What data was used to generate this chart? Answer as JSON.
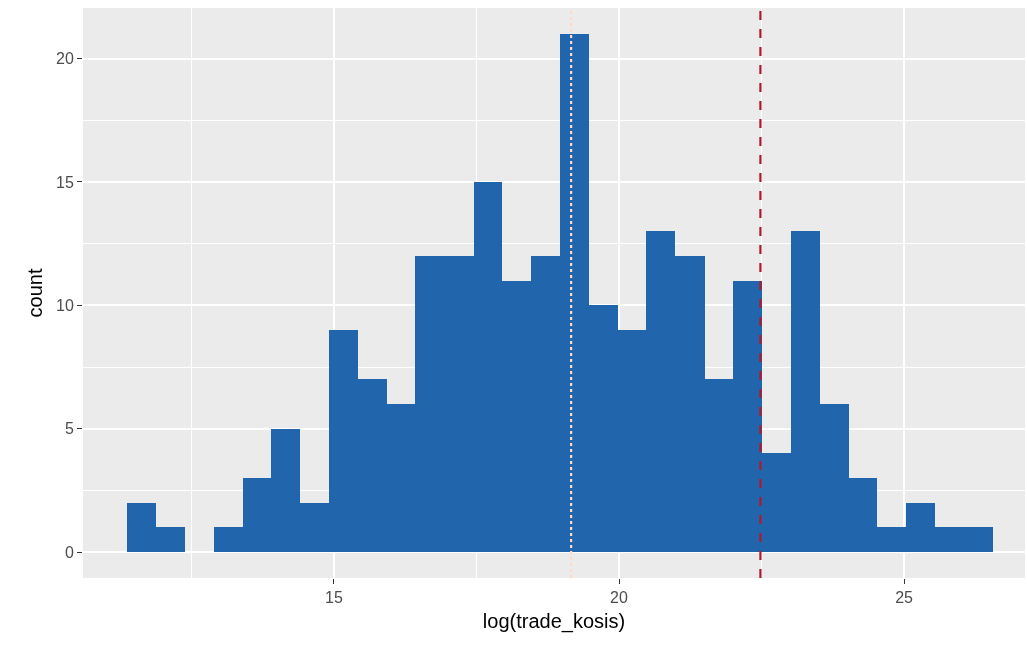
{
  "chart_data": {
    "type": "histogram",
    "xlabel": "log(trade_kosis)",
    "ylabel": "count",
    "bins": [
      11.37,
      11.88,
      12.38,
      12.89,
      13.4,
      13.9,
      14.41,
      14.91,
      15.42,
      15.93,
      16.43,
      16.94,
      17.45,
      17.95,
      18.46,
      18.97,
      19.47,
      19.98,
      20.48,
      20.99,
      21.5,
      22.0,
      22.51,
      23.02,
      23.52,
      24.03,
      24.53,
      25.04,
      25.55,
      26.05,
      26.56
    ],
    "values": [
      2,
      1,
      0,
      1,
      3,
      5,
      2,
      9,
      7,
      6,
      12,
      12,
      15,
      11,
      12,
      21,
      10,
      9,
      13,
      12,
      7,
      11,
      4,
      13,
      6,
      3,
      1,
      2,
      1,
      1
    ],
    "color": "#2166ac",
    "xlim": [
      10.6,
      27.12
    ],
    "xticks": [
      15,
      20,
      25
    ],
    "ylim": [
      -1.05,
      22.05
    ],
    "yticks": [
      0,
      5,
      10,
      15,
      20
    ],
    "grid": true,
    "ref_lines": [
      {
        "axis": "x",
        "value": 19.16,
        "color": "#fddbc7",
        "line_style": "dotted"
      },
      {
        "axis": "x",
        "value": 22.48,
        "color": "#b2182b",
        "line_style": "dashed"
      }
    ]
  }
}
